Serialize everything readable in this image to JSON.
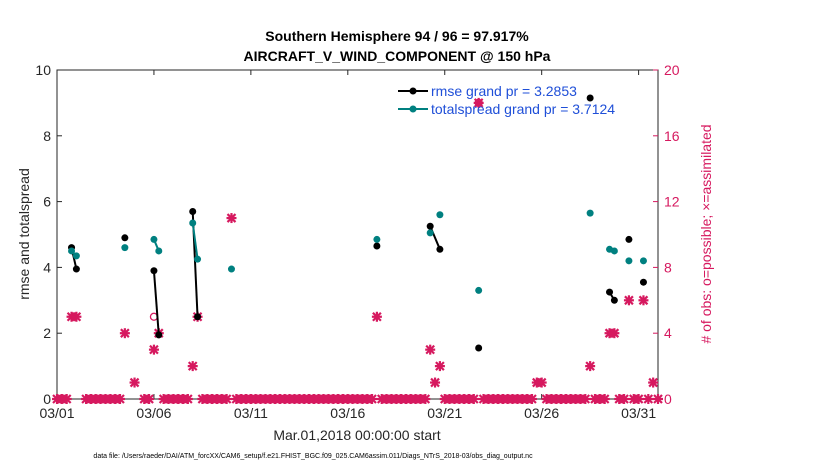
{
  "chart_data": {
    "type": "line",
    "title_line1": "Southern Hemisphere 94 / 96 = 97.917%",
    "title_line2": "AIRCRAFT_V_WIND_COMPONENT @ 150 hPa",
    "xlabel": "Mar.01,2018 00:00:00 start",
    "ylabel": "rmse and totalspread",
    "y2label": "# of obs: o=possible; ×=assimilated",
    "footnote": "data file: /Users/raeder/DAI/ATM_forcXX/CAM6_setup/f.e21.FHIST_BGC.f09_025.CAM6assim.011/Diags_NTrS_2018-03/obs_diag_output.nc",
    "xlim": [
      0,
      31
    ],
    "ylim": [
      0,
      10
    ],
    "y2lim": [
      0,
      20
    ],
    "xticks": [
      {
        "value": 0,
        "label": "03/01"
      },
      {
        "value": 5,
        "label": "03/06"
      },
      {
        "value": 10,
        "label": "03/11"
      },
      {
        "value": 15,
        "label": "03/16"
      },
      {
        "value": 20,
        "label": "03/21"
      },
      {
        "value": 25,
        "label": "03/26"
      },
      {
        "value": 30,
        "label": "03/31"
      }
    ],
    "yticks": [
      {
        "value": 0,
        "label": "0"
      },
      {
        "value": 2,
        "label": "2"
      },
      {
        "value": 4,
        "label": "4"
      },
      {
        "value": 6,
        "label": "6"
      },
      {
        "value": 8,
        "label": "8"
      },
      {
        "value": 10,
        "label": "10"
      }
    ],
    "y2ticks": [
      {
        "value": 0,
        "label": "0"
      },
      {
        "value": 4,
        "label": "4"
      },
      {
        "value": 8,
        "label": "8"
      },
      {
        "value": 12,
        "label": "12"
      },
      {
        "value": 16,
        "label": "16"
      },
      {
        "value": 20,
        "label": "20"
      }
    ],
    "colors": {
      "rmse": "#000000",
      "spread": "#008080",
      "obs": "#d6195f",
      "legend_text": "#1f4fd8"
    },
    "series": [
      {
        "name": "rmse grand pr = 3.2853",
        "key": "rmse",
        "segments": [
          [
            [
              0.75,
              4.6
            ],
            [
              1.0,
              3.95
            ]
          ],
          [
            [
              3.5,
              4.9
            ]
          ],
          [
            [
              5.0,
              3.9
            ],
            [
              5.25,
              1.95
            ]
          ],
          [
            [
              7.0,
              5.7
            ],
            [
              7.25,
              2.5
            ]
          ],
          [
            [
              16.5,
              4.65
            ]
          ],
          [
            [
              19.25,
              5.25
            ],
            [
              19.75,
              4.55
            ]
          ],
          [
            [
              21.75,
              1.55
            ]
          ],
          [
            [
              27.5,
              9.15
            ]
          ],
          [
            [
              28.5,
              3.25
            ],
            [
              28.75,
              3.0
            ]
          ],
          [
            [
              29.5,
              4.85
            ]
          ],
          [
            [
              30.25,
              3.55
            ]
          ]
        ]
      },
      {
        "name": "totalspread grand pr = 3.7124",
        "key": "spread",
        "segments": [
          [
            [
              0.75,
              4.5
            ],
            [
              1.0,
              4.35
            ]
          ],
          [
            [
              3.5,
              4.6
            ]
          ],
          [
            [
              5.0,
              4.85
            ],
            [
              5.25,
              4.5
            ]
          ],
          [
            [
              7.0,
              5.35
            ],
            [
              7.25,
              4.25
            ]
          ],
          [
            [
              9.0,
              3.95
            ]
          ],
          [
            [
              16.5,
              4.85
            ]
          ],
          [
            [
              19.25,
              5.05
            ]
          ],
          [
            [
              19.75,
              5.6
            ]
          ],
          [
            [
              21.75,
              3.3
            ]
          ],
          [
            [
              27.5,
              5.65
            ]
          ],
          [
            [
              28.5,
              4.55
            ],
            [
              28.75,
              4.5
            ]
          ],
          [
            [
              29.5,
              4.2
            ]
          ],
          [
            [
              30.25,
              4.2
            ]
          ]
        ]
      }
    ],
    "obs_possible": [
      {
        "x": 5.0,
        "y": 5.0
      },
      {
        "x": 21.75,
        "y": 18.0
      }
    ],
    "obs_assimilated": [
      {
        "x": 0.75,
        "y": 5
      },
      {
        "x": 1.0,
        "y": 5
      },
      {
        "x": 3.5,
        "y": 4
      },
      {
        "x": 4.0,
        "y": 1
      },
      {
        "x": 5.0,
        "y": 3
      },
      {
        "x": 5.25,
        "y": 4
      },
      {
        "x": 7.0,
        "y": 2
      },
      {
        "x": 7.25,
        "y": 5
      },
      {
        "x": 9.0,
        "y": 11
      },
      {
        "x": 16.5,
        "y": 5
      },
      {
        "x": 19.25,
        "y": 3
      },
      {
        "x": 19.5,
        "y": 1
      },
      {
        "x": 19.75,
        "y": 2
      },
      {
        "x": 21.75,
        "y": 18
      },
      {
        "x": 24.75,
        "y": 1
      },
      {
        "x": 25.0,
        "y": 1
      },
      {
        "x": 27.5,
        "y": 2
      },
      {
        "x": 28.5,
        "y": 4
      },
      {
        "x": 28.75,
        "y": 4
      },
      {
        "x": 29.5,
        "y": 6
      },
      {
        "x": 30.25,
        "y": 6
      },
      {
        "x": 30.75,
        "y": 1
      }
    ],
    "zero_obs_x": [
      0,
      0.25,
      0.5,
      1.5,
      1.75,
      2.0,
      2.25,
      2.5,
      2.75,
      3.0,
      3.25,
      4.5,
      4.75,
      5.5,
      5.75,
      6.0,
      6.25,
      6.5,
      6.75,
      7.5,
      7.75,
      8.0,
      8.25,
      8.5,
      8.75,
      9.25,
      9.5,
      9.75,
      10.0,
      10.25,
      10.5,
      10.75,
      11.0,
      11.25,
      11.5,
      11.75,
      12.0,
      12.25,
      12.5,
      12.75,
      13.0,
      13.25,
      13.5,
      13.75,
      14.0,
      14.25,
      14.5,
      14.75,
      15.0,
      15.25,
      15.5,
      15.75,
      16.0,
      16.25,
      16.75,
      17.0,
      17.25,
      17.5,
      17.75,
      18.0,
      18.25,
      18.5,
      18.75,
      19.0,
      20.0,
      20.25,
      20.5,
      20.75,
      21.0,
      21.25,
      21.5,
      22.0,
      22.25,
      22.5,
      22.75,
      23.0,
      23.25,
      23.5,
      23.75,
      24.0,
      24.25,
      24.5,
      25.25,
      25.5,
      25.75,
      26.0,
      26.25,
      26.5,
      26.75,
      27.0,
      27.25,
      27.75,
      28.0,
      28.25,
      29.0,
      29.25,
      29.75,
      30.0,
      30.5,
      31.0
    ]
  }
}
